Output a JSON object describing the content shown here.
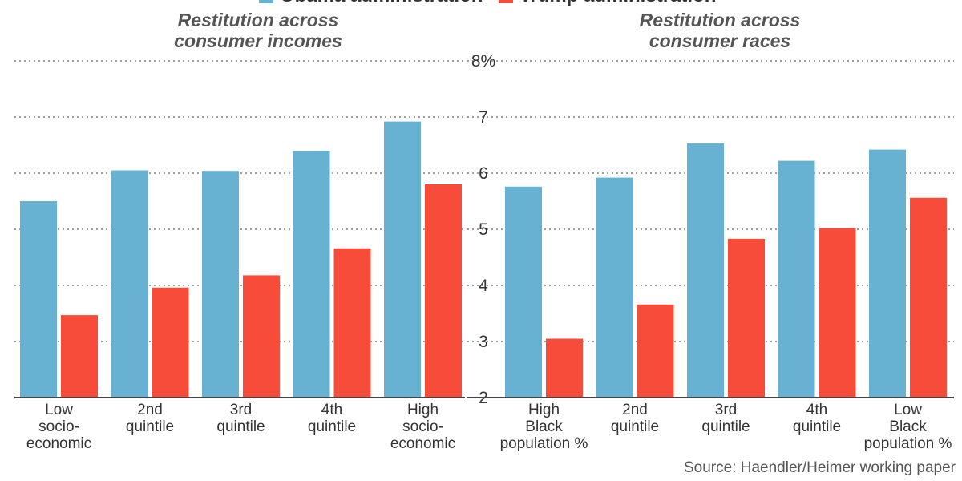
{
  "legend": {
    "items": [
      {
        "label": "Obama administration",
        "color": "#67b1d3"
      },
      {
        "label": "Trump administration",
        "color": "#f84c3a"
      }
    ]
  },
  "source": "Source: Haendler/Heimer working paper",
  "chart_data": [
    {
      "type": "bar",
      "title": "Restitution across consumer incomes",
      "title_lines": [
        "Restitution across",
        "consumer incomes"
      ],
      "categories": [
        "Low socio-economic",
        "2nd quintile",
        "3rd quintile",
        "4th quintile",
        "High socio-economic"
      ],
      "category_lines": [
        [
          "Low",
          "socio-",
          "economic"
        ],
        [
          "2nd",
          "quintile"
        ],
        [
          "3rd",
          "quintile"
        ],
        [
          "4th",
          "quintile"
        ],
        [
          "High",
          "socio-",
          "economic"
        ]
      ],
      "series": [
        {
          "name": "Obama administration",
          "values": [
            5.5,
            6.05,
            6.04,
            6.4,
            6.92
          ]
        },
        {
          "name": "Trump administration",
          "values": [
            3.47,
            3.96,
            4.18,
            4.66,
            5.8
          ]
        }
      ],
      "ylim": [
        2,
        8
      ],
      "yticks": [
        2,
        3,
        4,
        5,
        6,
        7,
        8
      ],
      "ytick_labels": [
        "",
        "",
        "",
        "",
        "",
        "",
        ""
      ],
      "grid": true,
      "legend": "top"
    },
    {
      "type": "bar",
      "title": "Restitution across consumer races",
      "title_lines": [
        "Restitution across",
        "consumer races"
      ],
      "categories": [
        "High Black population %",
        "2nd quintile",
        "3rd quintile",
        "4th quintile",
        "Low Black population %"
      ],
      "category_lines": [
        [
          "High",
          "Black",
          "population %"
        ],
        [
          "2nd",
          "quintile"
        ],
        [
          "3rd",
          "quintile"
        ],
        [
          "4th",
          "quintile"
        ],
        [
          "Low",
          "Black",
          "population %"
        ]
      ],
      "series": [
        {
          "name": "Obama administration",
          "values": [
            5.76,
            5.92,
            6.53,
            6.22,
            6.42
          ]
        },
        {
          "name": "Trump administration",
          "values": [
            3.05,
            3.66,
            4.83,
            5.02,
            5.56
          ]
        }
      ],
      "ylim": [
        2,
        8
      ],
      "yticks": [
        2,
        3,
        4,
        5,
        6,
        7,
        8
      ],
      "ytick_labels": [
        "2",
        "3",
        "4",
        "5",
        "6",
        "7",
        "8%"
      ],
      "grid": true,
      "legend": "top"
    }
  ]
}
